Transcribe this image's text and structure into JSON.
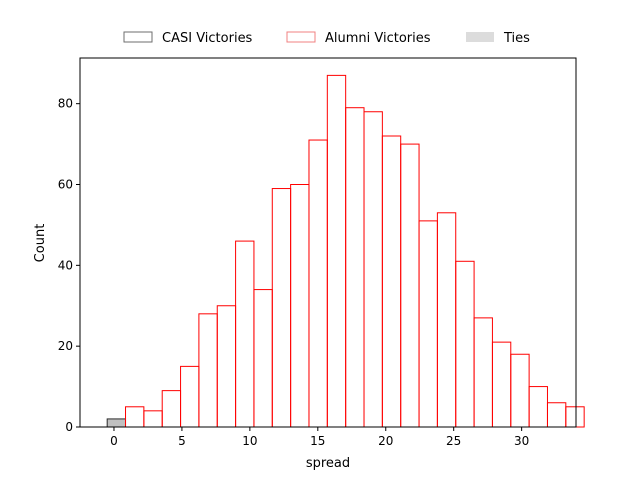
{
  "chart_data": {
    "type": "bar",
    "title": "",
    "xlabel": "spread",
    "ylabel": "Count",
    "xlim": [
      -2.5,
      34.0
    ],
    "ylim": [
      0,
      91.3
    ],
    "bin_width": 1.35,
    "x_ticks": [
      0,
      5,
      10,
      15,
      20,
      25,
      30
    ],
    "y_ticks": [
      0,
      20,
      40,
      60,
      80
    ],
    "legend": {
      "placement": "top-center",
      "entries": [
        {
          "label": "CASI Victories",
          "style": "outline",
          "color": "#6e6e6e"
        },
        {
          "label": "Alumni Victories",
          "style": "outline",
          "color": "#f08080"
        },
        {
          "label": "Ties",
          "style": "filled",
          "color": "#dcdcdc"
        }
      ]
    },
    "series": [
      {
        "name": "Ties",
        "edge": "#2b2b2b",
        "fill": "#c0c0c0",
        "bins": [
          {
            "x": -0.5,
            "count": 2
          }
        ]
      },
      {
        "name": "Alumni Victories",
        "edge": "#ff0000",
        "fill": "none",
        "bins": [
          {
            "x": 0.17,
            "count": 0
          },
          {
            "x": 0.85,
            "count": 5
          },
          {
            "x": 2.2,
            "count": 4
          },
          {
            "x": 3.55,
            "count": 9
          },
          {
            "x": 4.9,
            "count": 15
          },
          {
            "x": 5.35,
            "count": 0
          },
          {
            "x": 6.25,
            "count": 28
          },
          {
            "x": 7.6,
            "count": 30
          },
          {
            "x": 8.95,
            "count": 46
          },
          {
            "x": 10.3,
            "count": 34
          },
          {
            "x": 11.65,
            "count": 59
          },
          {
            "x": 13.0,
            "count": 60
          },
          {
            "x": 14.35,
            "count": 71
          },
          {
            "x": 15.7,
            "count": 87
          },
          {
            "x": 17.05,
            "count": 79
          },
          {
            "x": 18.4,
            "count": 78
          },
          {
            "x": 19.75,
            "count": 72
          },
          {
            "x": 21.1,
            "count": 70
          },
          {
            "x": 22.45,
            "count": 51
          },
          {
            "x": 23.8,
            "count": 53
          },
          {
            "x": 25.15,
            "count": 41
          },
          {
            "x": 26.5,
            "count": 27
          },
          {
            "x": 27.85,
            "count": 21
          },
          {
            "x": 29.2,
            "count": 18
          },
          {
            "x": 30.55,
            "count": 10
          },
          {
            "x": 31.9,
            "count": 6
          },
          {
            "x": 33.25,
            "count": 5
          }
        ]
      }
    ]
  }
}
